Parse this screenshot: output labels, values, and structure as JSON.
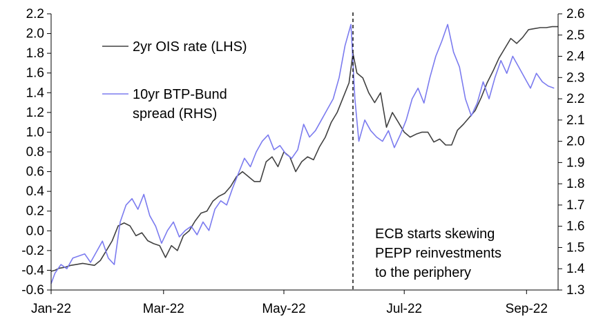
{
  "chart_data": {
    "type": "line",
    "x_tick_labels": [
      "Jan-22",
      "Mar-22",
      "May-22",
      "Jul-22",
      "Sep-22"
    ],
    "x_range": [
      "2022-01-03",
      "2022-09-15"
    ],
    "left_axis": {
      "ylim": [
        -0.6,
        2.2
      ],
      "tick_labels": [
        "-0.6",
        "-0.4",
        "-0.2",
        "0.0",
        "0.2",
        "0.4",
        "0.6",
        "0.8",
        "1.0",
        "1.2",
        "1.4",
        "1.6",
        "1.8",
        "2.0",
        "2.2"
      ]
    },
    "right_axis": {
      "ylim": [
        1.3,
        2.6
      ],
      "tick_labels": [
        "1.3",
        "1.4",
        "1.5",
        "1.6",
        "1.7",
        "1.8",
        "1.9",
        "2.0",
        "2.1",
        "2.2",
        "2.3",
        "2.4",
        "2.5",
        "2.6"
      ]
    },
    "series": [
      {
        "name": "2yr OIS rate (LHS)",
        "axis": "left",
        "color": "#404040",
        "x": [
          0,
          2,
          4,
          7,
          10,
          13,
          16,
          19,
          22,
          25,
          28,
          31,
          34,
          37,
          40,
          43,
          46,
          49,
          52,
          55,
          58,
          61,
          64,
          67,
          70,
          73,
          76,
          79,
          82,
          85,
          88,
          91,
          94,
          97,
          100,
          103,
          106,
          109,
          112,
          115,
          118,
          121,
          124,
          127,
          130,
          133,
          136,
          139,
          142,
          145,
          148,
          151,
          153,
          155,
          158,
          161,
          164,
          167,
          170,
          173,
          176,
          179,
          182,
          185,
          188,
          191,
          194,
          197,
          200,
          203,
          206,
          209,
          212,
          215,
          218,
          221,
          224,
          227,
          230,
          233,
          236,
          239,
          242,
          245,
          248,
          251,
          254,
          257
        ],
        "values": [
          -0.41,
          -0.4,
          -0.38,
          -0.37,
          -0.35,
          -0.34,
          -0.33,
          -0.34,
          -0.35,
          -0.3,
          -0.2,
          -0.1,
          0.05,
          0.08,
          0.05,
          -0.05,
          -0.02,
          -0.1,
          -0.13,
          -0.15,
          -0.27,
          -0.15,
          -0.2,
          -0.05,
          0.0,
          0.1,
          0.18,
          0.2,
          0.3,
          0.35,
          0.38,
          0.45,
          0.55,
          0.6,
          0.55,
          0.5,
          0.5,
          0.7,
          0.75,
          0.65,
          0.8,
          0.75,
          0.6,
          0.7,
          0.75,
          0.72,
          0.85,
          0.95,
          1.1,
          1.2,
          1.35,
          1.5,
          1.8,
          1.6,
          1.55,
          1.4,
          1.3,
          1.4,
          1.05,
          1.2,
          1.1,
          1.0,
          0.95,
          0.98,
          1.0,
          1.0,
          0.9,
          0.93,
          0.87,
          0.87,
          1.02,
          1.08,
          1.15,
          1.22,
          1.35,
          1.5,
          1.62,
          1.75,
          1.85,
          1.95,
          1.9,
          1.96,
          2.04,
          2.05,
          2.06,
          2.06,
          2.07,
          2.07
        ]
      },
      {
        "name": "10yr BTP-Bund spread (RHS)",
        "axis": "right",
        "color": "#7b7bef",
        "x": [
          0,
          2,
          5,
          8,
          11,
          14,
          17,
          20,
          23,
          26,
          29,
          32,
          35,
          38,
          41,
          44,
          47,
          50,
          53,
          56,
          59,
          62,
          65,
          68,
          71,
          74,
          77,
          80,
          83,
          86,
          89,
          92,
          95,
          98,
          101,
          104,
          107,
          110,
          113,
          116,
          119,
          122,
          125,
          128,
          131,
          134,
          137,
          140,
          143,
          146,
          149,
          152,
          154,
          156,
          159,
          162,
          165,
          168,
          171,
          174,
          177,
          180,
          183,
          186,
          189,
          192,
          195,
          198,
          201,
          204,
          207,
          210,
          213,
          216,
          219,
          222,
          225,
          228,
          231,
          234,
          237,
          240,
          243,
          246,
          249,
          252,
          255
        ],
        "values": [
          1.33,
          1.38,
          1.42,
          1.4,
          1.45,
          1.46,
          1.47,
          1.43,
          1.48,
          1.53,
          1.45,
          1.42,
          1.62,
          1.7,
          1.73,
          1.68,
          1.75,
          1.65,
          1.6,
          1.52,
          1.58,
          1.62,
          1.55,
          1.58,
          1.6,
          1.56,
          1.62,
          1.58,
          1.68,
          1.72,
          1.7,
          1.78,
          1.85,
          1.92,
          1.88,
          1.95,
          2.0,
          2.03,
          1.96,
          1.98,
          1.94,
          1.92,
          1.96,
          2.08,
          2.02,
          2.05,
          2.1,
          2.15,
          2.2,
          2.3,
          2.45,
          2.55,
          2.2,
          2.0,
          2.1,
          2.05,
          2.02,
          2.0,
          2.05,
          1.97,
          2.03,
          2.1,
          2.2,
          2.25,
          2.18,
          2.3,
          2.4,
          2.47,
          2.55,
          2.42,
          2.35,
          2.2,
          2.12,
          2.18,
          2.28,
          2.2,
          2.3,
          2.38,
          2.32,
          2.4,
          2.35,
          2.3,
          2.25,
          2.32,
          2.28,
          2.26,
          2.25
        ]
      }
    ],
    "legend": [
      "2yr OIS rate (LHS)",
      "10yr BTP-Bund spread (RHS)"
    ],
    "legend_placement": "top-left",
    "annotation": {
      "lines": [
        "ECB starts skewing",
        "PEPP reinvestments",
        "to the periphery"
      ],
      "event_x": 153
    },
    "grid": false,
    "title": ""
  },
  "legend_items": [
    {
      "line1": "2yr OIS rate (LHS)",
      "line2": "",
      "color": "#404040"
    },
    {
      "line1": "10yr BTP-Bund",
      "line2": "spread (RHS)",
      "color": "#7b7bef"
    }
  ]
}
